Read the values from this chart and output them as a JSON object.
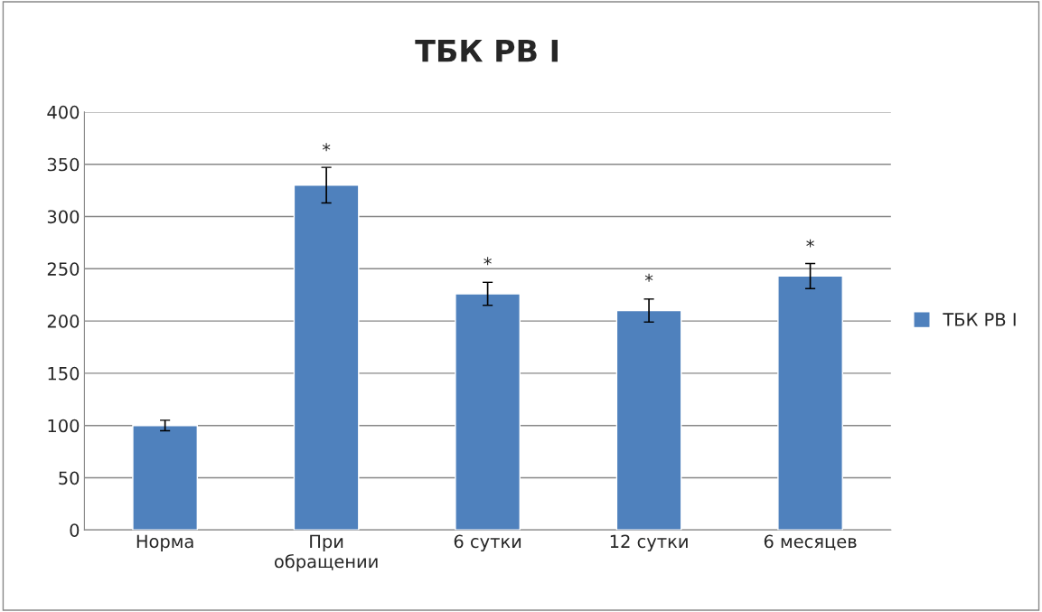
{
  "chart_data": {
    "type": "bar",
    "title": "ТБК РВ I",
    "categories": [
      "Норма",
      "При\nобращении",
      "6 сутки",
      "12 сутки",
      "6 месяцев"
    ],
    "series": [
      {
        "name": "ТБК РВ I",
        "color": "#4f81bd",
        "values": [
          100,
          330,
          226,
          210,
          243
        ],
        "errors": [
          5,
          17,
          11,
          11,
          12
        ]
      }
    ],
    "ylim": [
      0,
      400
    ],
    "yticks": [
      0,
      50,
      100,
      150,
      200,
      250,
      300,
      350,
      400
    ],
    "grid": "y",
    "legend": "right",
    "annotations": [
      {
        "text": "*",
        "x": "При\nобращении",
        "y": 347
      },
      {
        "text": "*",
        "x": "6 сутки",
        "y": 238
      },
      {
        "text": "*",
        "x": "12 сутки",
        "y": 222
      },
      {
        "text": "*",
        "x": "6 месяцев",
        "y": 255
      }
    ]
  }
}
